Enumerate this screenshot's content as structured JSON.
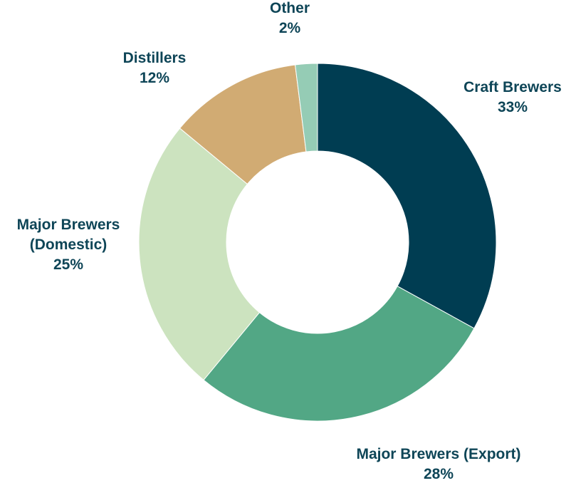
{
  "chart_data": {
    "type": "pie",
    "donut": true,
    "title": "",
    "slices": [
      {
        "name": "Craft Brewers",
        "label_lines": [
          "Craft Brewers"
        ],
        "value": 33,
        "value_label": "33%",
        "color": "#003d52"
      },
      {
        "name": "Major Brewers (Export)",
        "label_lines": [
          "Major Brewers (Export)"
        ],
        "value": 28,
        "value_label": "28%",
        "color": "#52a785"
      },
      {
        "name": "Major Brewers (Domestic)",
        "label_lines": [
          "Major Brewers",
          "(Domestic)"
        ],
        "value": 25,
        "value_label": "25%",
        "color": "#cce3bf"
      },
      {
        "name": "Distillers",
        "label_lines": [
          "Distillers"
        ],
        "value": 12,
        "value_label": "12%",
        "color": "#d1ab73"
      },
      {
        "name": "Other",
        "label_lines": [
          "Other"
        ],
        "value": 2,
        "value_label": "2%",
        "color": "#95ccb5"
      }
    ],
    "start_angle": "12 o'clock",
    "direction": "clockwise",
    "label_color": "#0e4557",
    "legend": "none"
  }
}
